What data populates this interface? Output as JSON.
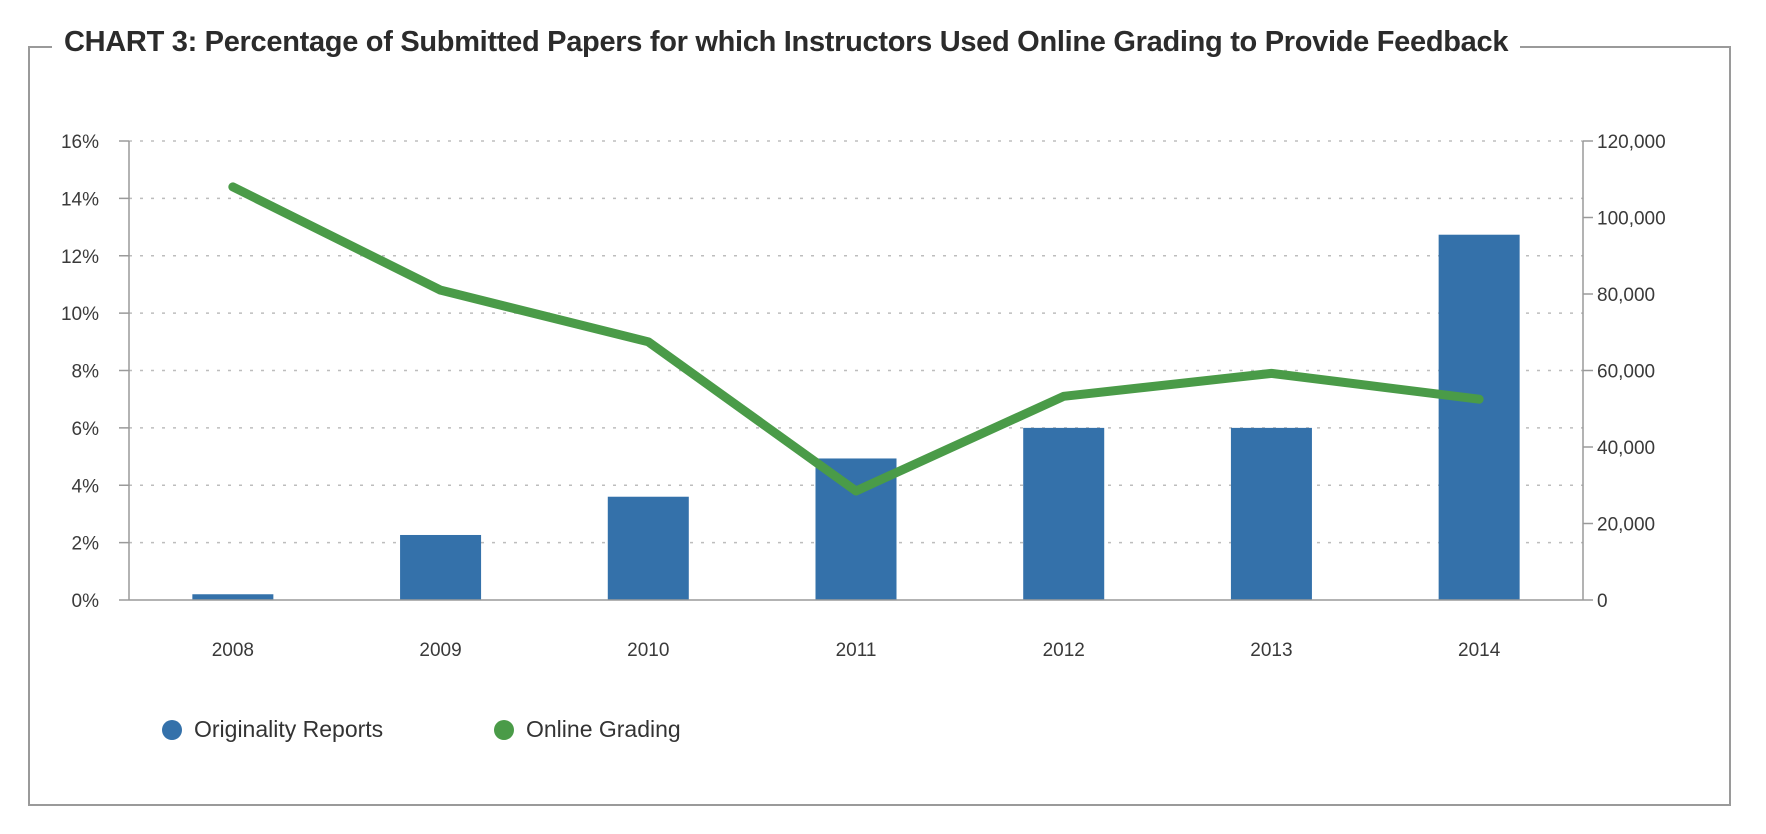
{
  "chart_data": {
    "type": "bar",
    "title": "CHART 3: Percentage of Submitted Papers for which Instructors Used Online Grading to Provide Feedback",
    "categories": [
      "2008",
      "2009",
      "2010",
      "2011",
      "2012",
      "2013",
      "2014"
    ],
    "series": [
      {
        "name": "Originality Reports",
        "type": "bar",
        "axis": "right",
        "color": "#3471aa",
        "values": [
          1500,
          17000,
          27000,
          37000,
          45000,
          45000,
          95500
        ]
      },
      {
        "name": "Online Grading",
        "type": "line",
        "axis": "left",
        "color": "#4a9b48",
        "values": [
          14.4,
          10.8,
          9.0,
          3.8,
          7.1,
          7.9,
          7.0
        ]
      }
    ],
    "y_left": {
      "ylim": [
        0,
        16
      ],
      "ticks": [
        0,
        2,
        4,
        6,
        8,
        10,
        12,
        14,
        16
      ],
      "tick_labels": [
        "0%",
        "2%",
        "4%",
        "6%",
        "8%",
        "10%",
        "12%",
        "14%",
        "16%"
      ]
    },
    "y_right": {
      "ylim": [
        0,
        120000
      ],
      "ticks": [
        0,
        20000,
        40000,
        60000,
        80000,
        100000,
        120000
      ],
      "tick_labels": [
        "0",
        "20,000",
        "40,000",
        "60,000",
        "80,000",
        "100,000",
        "120,000"
      ]
    },
    "grid": true,
    "legend_position": "bottom-left"
  }
}
